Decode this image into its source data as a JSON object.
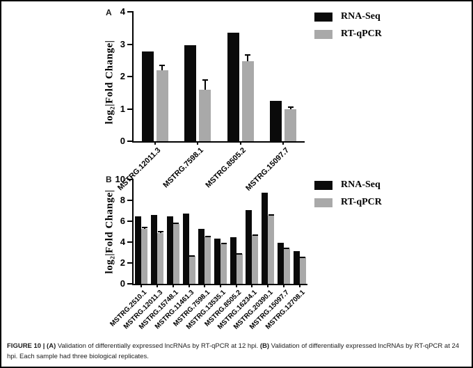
{
  "legend": {
    "items": [
      {
        "label": "RNA-Seq",
        "color": "#0a0a0a"
      },
      {
        "label": "RT-qPCR",
        "color": "#a9a9a9"
      }
    ]
  },
  "chart_data": [
    {
      "type": "bar",
      "panel": "A",
      "ylabel": "log₂|Fold Change|",
      "ylim": [
        0,
        4
      ],
      "yticks": [
        0,
        1,
        2,
        3,
        4
      ],
      "grid": false,
      "legend_position": "top-right",
      "categories": [
        "MSTRG.12011.3",
        "MSTRG.7598.1",
        "MSTRG.8505.2",
        "MSTRG.15097.7"
      ],
      "series": [
        {
          "name": "RNA-Seq",
          "color": "#0a0a0a",
          "values": [
            2.78,
            2.97,
            3.35,
            1.25
          ]
        },
        {
          "name": "RT-qPCR",
          "color": "#a9a9a9",
          "values": [
            2.2,
            1.6,
            2.47,
            0.98
          ],
          "errors": [
            0.17,
            0.31,
            0.22,
            0.1
          ]
        }
      ]
    },
    {
      "type": "bar",
      "panel": "B",
      "ylabel": "log₂|Fold Change|",
      "ylim": [
        0,
        10
      ],
      "yticks": [
        0,
        2,
        4,
        6,
        8,
        10
      ],
      "grid": false,
      "legend_position": "top-right",
      "categories": [
        "MSTRG.2510.1",
        "MSTRG.12011.3",
        "MSTRG.15748.1",
        "MSTRG.11461.3",
        "MSTRG.7598.1",
        "MSTRG.13535.1",
        "MSTRG.8505.2",
        "MSTRG.16234.1",
        "MSTRG.20390.1",
        "MSTRG.15097.7",
        "MSTRG.12708.1"
      ],
      "series": [
        {
          "name": "RNA-Seq",
          "color": "#0a0a0a",
          "values": [
            6.5,
            6.6,
            6.45,
            6.75,
            5.3,
            4.35,
            4.5,
            7.1,
            8.75,
            3.95,
            3.15
          ]
        },
        {
          "name": "RT-qPCR",
          "color": "#a9a9a9",
          "values": [
            5.3,
            4.85,
            5.75,
            2.65,
            4.55,
            3.8,
            2.9,
            4.7,
            6.55,
            3.35,
            2.55
          ],
          "errors": [
            0.15,
            0.25,
            0.15,
            0.07,
            0.08,
            0.12,
            0.06,
            0.06,
            0.1,
            0.15,
            0.08
          ]
        }
      ]
    }
  ],
  "caption": {
    "segments": [
      {
        "text": "FIGURE 10 | ",
        "bold": true
      },
      {
        "text": "(A)",
        "bold": true
      },
      {
        "text": " Validation of differentially expressed lncRNAs by RT-qPCR at 12 hpi. ",
        "bold": false
      },
      {
        "text": "(B)",
        "bold": true
      },
      {
        "text": " Validation of differentially expressed lncRNAs by RT-qPCR at 24 hpi. Each sample had three biological replicates.",
        "bold": false
      }
    ]
  }
}
